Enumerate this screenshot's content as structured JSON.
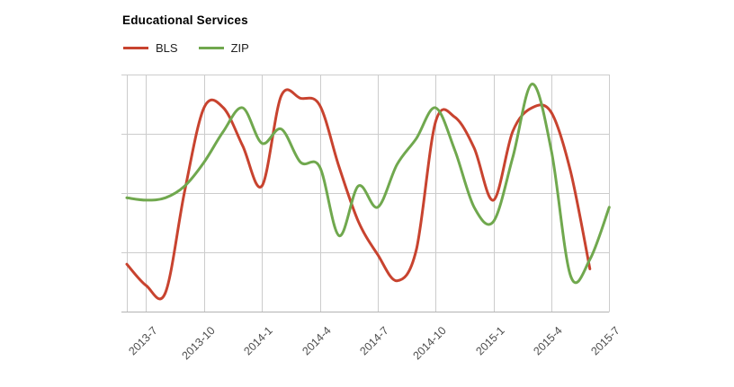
{
  "title": "Educational Services",
  "legend": {
    "items": [
      {
        "label": "BLS",
        "color": "#c8432f"
      },
      {
        "label": "ZIP",
        "color": "#70a84e"
      }
    ]
  },
  "colors": {
    "bls_line": "#c8432f",
    "zip_line": "#70a84e",
    "gridline": "#cccccc",
    "axis_line": "#b3b3b3",
    "tick_label_text": "#4d4d4d",
    "title_text": "#000000",
    "background": "#ffffff"
  },
  "chart_data": {
    "type": "line",
    "title": "Educational Services",
    "xlabel": "",
    "ylabel": "",
    "y_axis_labels_visible": false,
    "grid": true,
    "smoothing": "spline",
    "legend_position": "top-left",
    "ylim": [
      0,
      100
    ],
    "categories": [
      "2013-06",
      "2013-07",
      "2013-08",
      "2013-09",
      "2013-10",
      "2013-11",
      "2013-12",
      "2014-01",
      "2014-02",
      "2014-03",
      "2014-04",
      "2014-05",
      "2014-06",
      "2014-07",
      "2014-08",
      "2014-09",
      "2014-10",
      "2014-11",
      "2014-12",
      "2015-01",
      "2015-02",
      "2015-03",
      "2015-04",
      "2015-05",
      "2015-06",
      "2015-07"
    ],
    "x_ticks": [
      {
        "label": "2013-7",
        "month_index": 1
      },
      {
        "label": "2013-10",
        "month_index": 4
      },
      {
        "label": "2014-1",
        "month_index": 7
      },
      {
        "label": "2014-4",
        "month_index": 10
      },
      {
        "label": "2014-7",
        "month_index": 13
      },
      {
        "label": "2014-10",
        "month_index": 16
      },
      {
        "label": "2015-1",
        "month_index": 19
      },
      {
        "label": "2015-4",
        "month_index": 22
      },
      {
        "label": "2015-7",
        "month_index": 25
      }
    ],
    "series": [
      {
        "name": "BLS",
        "color": "#c8432f",
        "values": [
          20,
          11,
          8,
          51,
          86,
          86,
          70,
          53,
          91,
          90,
          87,
          61,
          38,
          24,
          13,
          26,
          80,
          82,
          69,
          47,
          76,
          86,
          84,
          59,
          18,
          null
        ]
      },
      {
        "name": "ZIP",
        "color": "#70a84e",
        "values": [
          48,
          47,
          48,
          53,
          63,
          76,
          86,
          71,
          77,
          63,
          61,
          32,
          53,
          44,
          62,
          73,
          86,
          68,
          44,
          38,
          65,
          96,
          68,
          15,
          22,
          44
        ]
      }
    ]
  }
}
